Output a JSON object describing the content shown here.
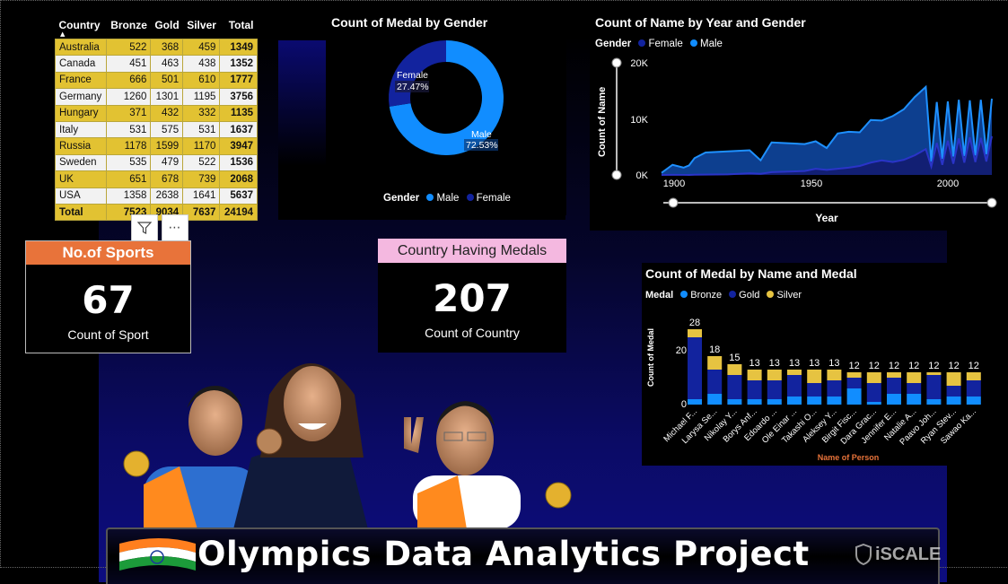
{
  "table": {
    "headers": [
      "Country",
      "Bronze",
      "Gold",
      "Silver",
      "Total"
    ],
    "rows": [
      [
        "Australia",
        "522",
        "368",
        "459",
        "1349"
      ],
      [
        "Canada",
        "451",
        "463",
        "438",
        "1352"
      ],
      [
        "France",
        "666",
        "501",
        "610",
        "1777"
      ],
      [
        "Germany",
        "1260",
        "1301",
        "1195",
        "3756"
      ],
      [
        "Hungary",
        "371",
        "432",
        "332",
        "1135"
      ],
      [
        "Italy",
        "531",
        "575",
        "531",
        "1637"
      ],
      [
        "Russia",
        "1178",
        "1599",
        "1170",
        "3947"
      ],
      [
        "Sweden",
        "535",
        "479",
        "522",
        "1536"
      ],
      [
        "UK",
        "651",
        "678",
        "739",
        "2068"
      ],
      [
        "USA",
        "1358",
        "2638",
        "1641",
        "5637"
      ]
    ],
    "total": [
      "Total",
      "7523",
      "9034",
      "7637",
      "24194"
    ]
  },
  "cards": {
    "sports": {
      "title": "No.of Sports",
      "value": "67",
      "label": "Count of Sport",
      "title_bg": "#e8733a"
    },
    "countries": {
      "title": "Country Having Medals",
      "value": "207",
      "label": "Count of Country",
      "title_bg": "#f4b8e0"
    }
  },
  "donut": {
    "title": "Count of Medal by Gender",
    "legend_title": "Gender",
    "legend": [
      "Male",
      "Female"
    ],
    "female_label": "Female",
    "female_pct": "27.47%",
    "male_label": "Male",
    "male_pct": "72.53%",
    "colors": {
      "Male": "#118dff",
      "Female": "#12239e"
    }
  },
  "area": {
    "title": "Count of Name by Year and Gender",
    "legend_title": "Gender",
    "legend": [
      "Female",
      "Male"
    ],
    "y_title": "Count of Name",
    "x_title": "Year",
    "y_ticks": [
      "20K",
      "10K",
      "0K"
    ],
    "x_ticks": [
      "1900",
      "1950",
      "2000"
    ]
  },
  "bars": {
    "title": "Count of Medal by Name and Medal",
    "legend_title": "Medal",
    "legend": [
      "Bronze",
      "Gold",
      "Silver"
    ],
    "y_title": "Count of Medal",
    "x_title": "Name of Person",
    "y_ticks": [
      "20",
      "0"
    ],
    "colors": {
      "Bronze": "#118dff",
      "Gold": "#12239e",
      "Silver": "#e6c341"
    }
  },
  "chart_data": [
    {
      "type": "pie",
      "title": "Count of Medal by Gender",
      "categories": [
        "Male",
        "Female"
      ],
      "values": [
        72.53,
        27.47
      ]
    },
    {
      "type": "area",
      "title": "Count of Name by Year and Gender",
      "xlabel": "Year",
      "ylabel": "Count of Name",
      "ylim": [
        0,
        20000
      ],
      "x": [
        1896,
        1900,
        1904,
        1906,
        1908,
        1912,
        1920,
        1924,
        1928,
        1932,
        1936,
        1948,
        1952,
        1956,
        1960,
        1964,
        1968,
        1972,
        1976,
        1980,
        1984,
        1988,
        1992,
        1994,
        1996,
        1998,
        2000,
        2002,
        2004,
        2006,
        2008,
        2010,
        2012,
        2014,
        2016
      ],
      "series": [
        {
          "name": "Male",
          "values": [
            380,
            1800,
            1300,
            1700,
            3000,
            4000,
            4200,
            4300,
            4400,
            2600,
            5800,
            5500,
            6000,
            4800,
            7400,
            7700,
            7600,
            9800,
            9700,
            10500,
            11700,
            13900,
            15700,
            2400,
            13000,
            2900,
            13100,
            3300,
            13400,
            3400,
            13300,
            3500,
            13400,
            3700,
            13600
          ]
        },
        {
          "name": "Female",
          "values": [
            0,
            20,
            10,
            10,
            40,
            60,
            100,
            200,
            300,
            200,
            500,
            700,
            1100,
            900,
            1100,
            1300,
            1600,
            2200,
            2600,
            2300,
            2700,
            3500,
            4600,
            1500,
            5700,
            1800,
            6100,
            2000,
            6500,
            2200,
            6700,
            2300,
            6600,
            2400,
            6900
          ]
        }
      ]
    },
    {
      "type": "bar",
      "title": "Count of Medal by Name and Medal",
      "xlabel": "Name of Person",
      "ylabel": "Count of Medal",
      "categories": [
        "Michael F...",
        "Larysa Se...",
        "Nikolay Y...",
        "Borys Anf...",
        "Edoardo ...",
        "Ole Einar ...",
        "Takashi O...",
        "Aleksey Y...",
        "Birgit Fisc...",
        "Dara Grac...",
        "Jennifer E...",
        "Natalie A...",
        "Paavo Joh...",
        "Ryan Stev...",
        "Sawao Ka..."
      ],
      "totals": [
        28,
        18,
        15,
        13,
        13,
        13,
        13,
        13,
        12,
        12,
        12,
        12,
        12,
        12,
        12
      ],
      "series": [
        {
          "name": "Bronze",
          "values": [
            2,
            4,
            2,
            2,
            2,
            3,
            3,
            3,
            6,
            1,
            4,
            4,
            2,
            3,
            3
          ]
        },
        {
          "name": "Gold",
          "values": [
            23,
            9,
            9,
            7,
            7,
            8,
            5,
            6,
            4,
            7,
            6,
            4,
            9,
            4,
            6
          ]
        },
        {
          "name": "Silver",
          "values": [
            3,
            5,
            4,
            4,
            4,
            2,
            5,
            4,
            2,
            4,
            2,
            4,
            1,
            5,
            3
          ]
        }
      ]
    }
  ],
  "banner": {
    "title": "Olympics Data Analytics Project",
    "brand": "iSCALE"
  }
}
